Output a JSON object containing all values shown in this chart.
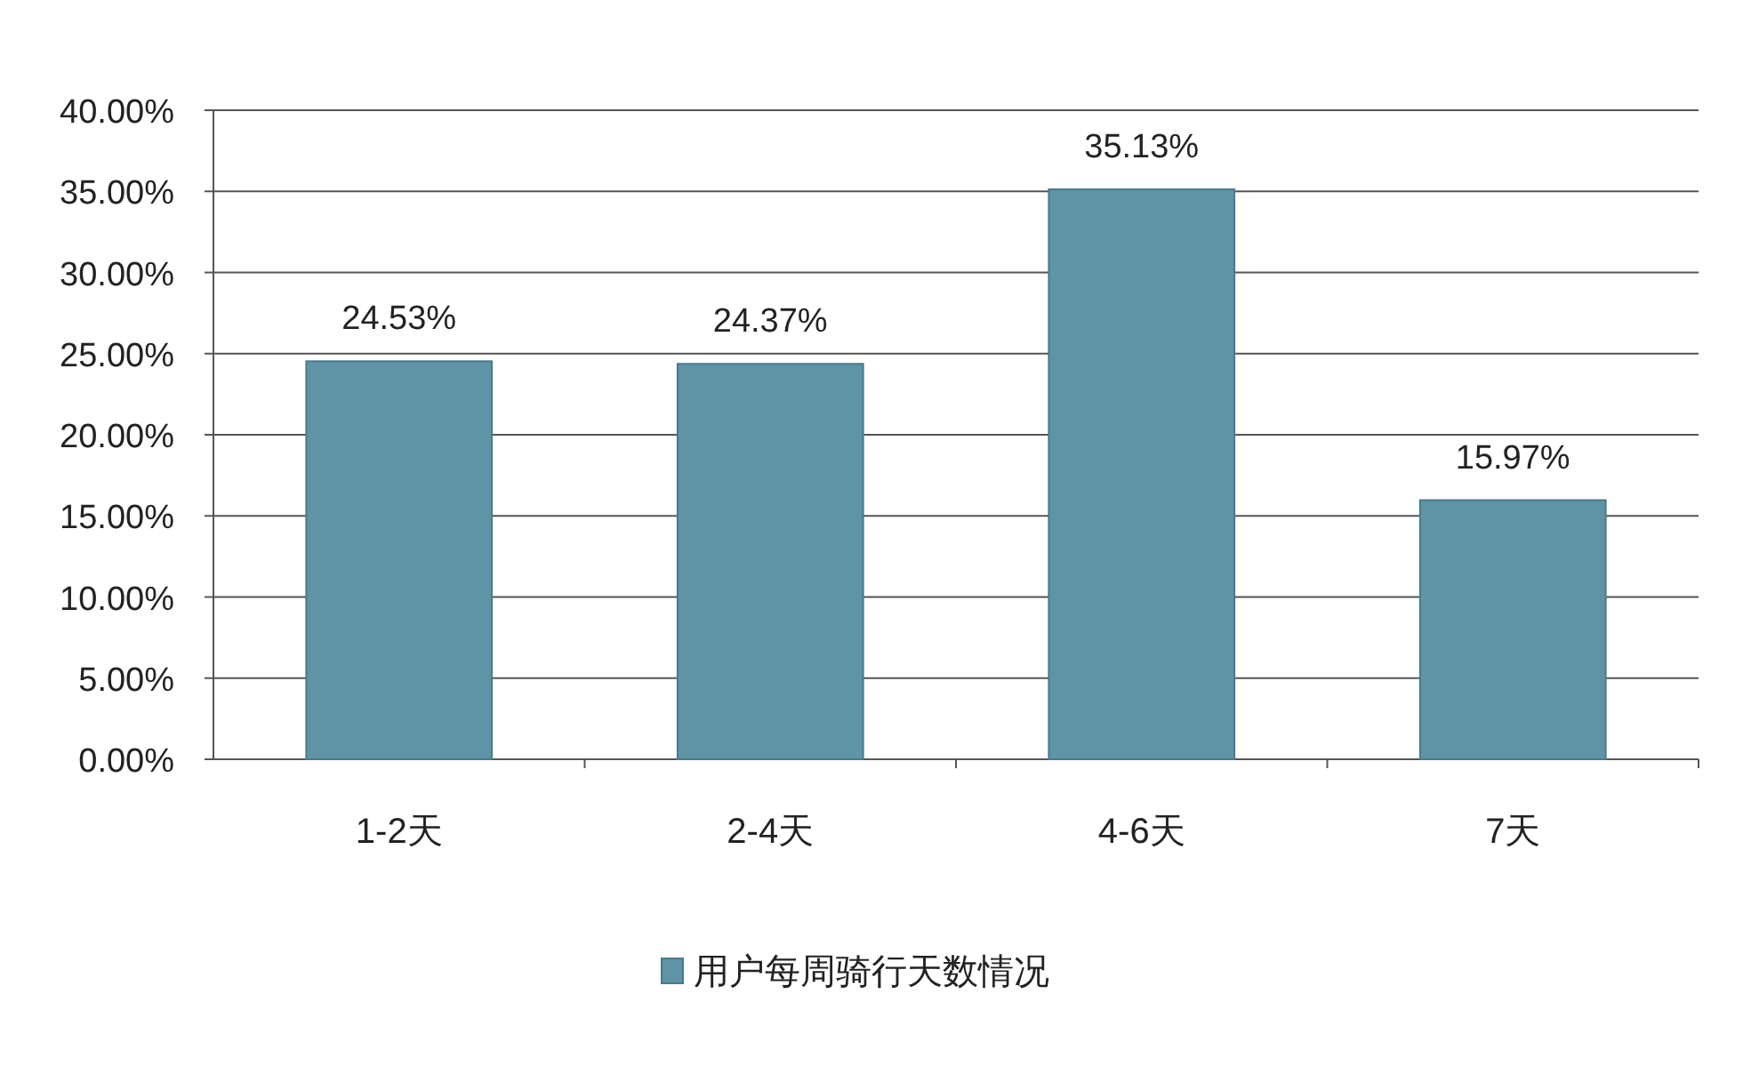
{
  "chart_data": {
    "type": "bar",
    "categories": [
      "1-2天",
      "2-4天",
      "4-6天",
      "7天"
    ],
    "series": [
      {
        "name": "用户每周骑行天数情况",
        "color": "#5f93a6",
        "values": [
          24.53,
          24.37,
          35.13,
          15.97
        ],
        "value_labels": [
          "24.53%",
          "24.37%",
          "35.13%",
          "15.97%"
        ]
      }
    ],
    "ylim": [
      0,
      40
    ],
    "yticks": [
      {
        "value": 0,
        "label": "0.00%"
      },
      {
        "value": 5,
        "label": "5.00%"
      },
      {
        "value": 10,
        "label": "10.00%"
      },
      {
        "value": 15,
        "label": "15.00%"
      },
      {
        "value": 20,
        "label": "20.00%"
      },
      {
        "value": 25,
        "label": "25.00%"
      },
      {
        "value": 30,
        "label": "30.00%"
      },
      {
        "value": 35,
        "label": "35.00%"
      },
      {
        "value": 40,
        "label": "40.00%"
      }
    ],
    "grid": "y",
    "legend": "bottom"
  }
}
